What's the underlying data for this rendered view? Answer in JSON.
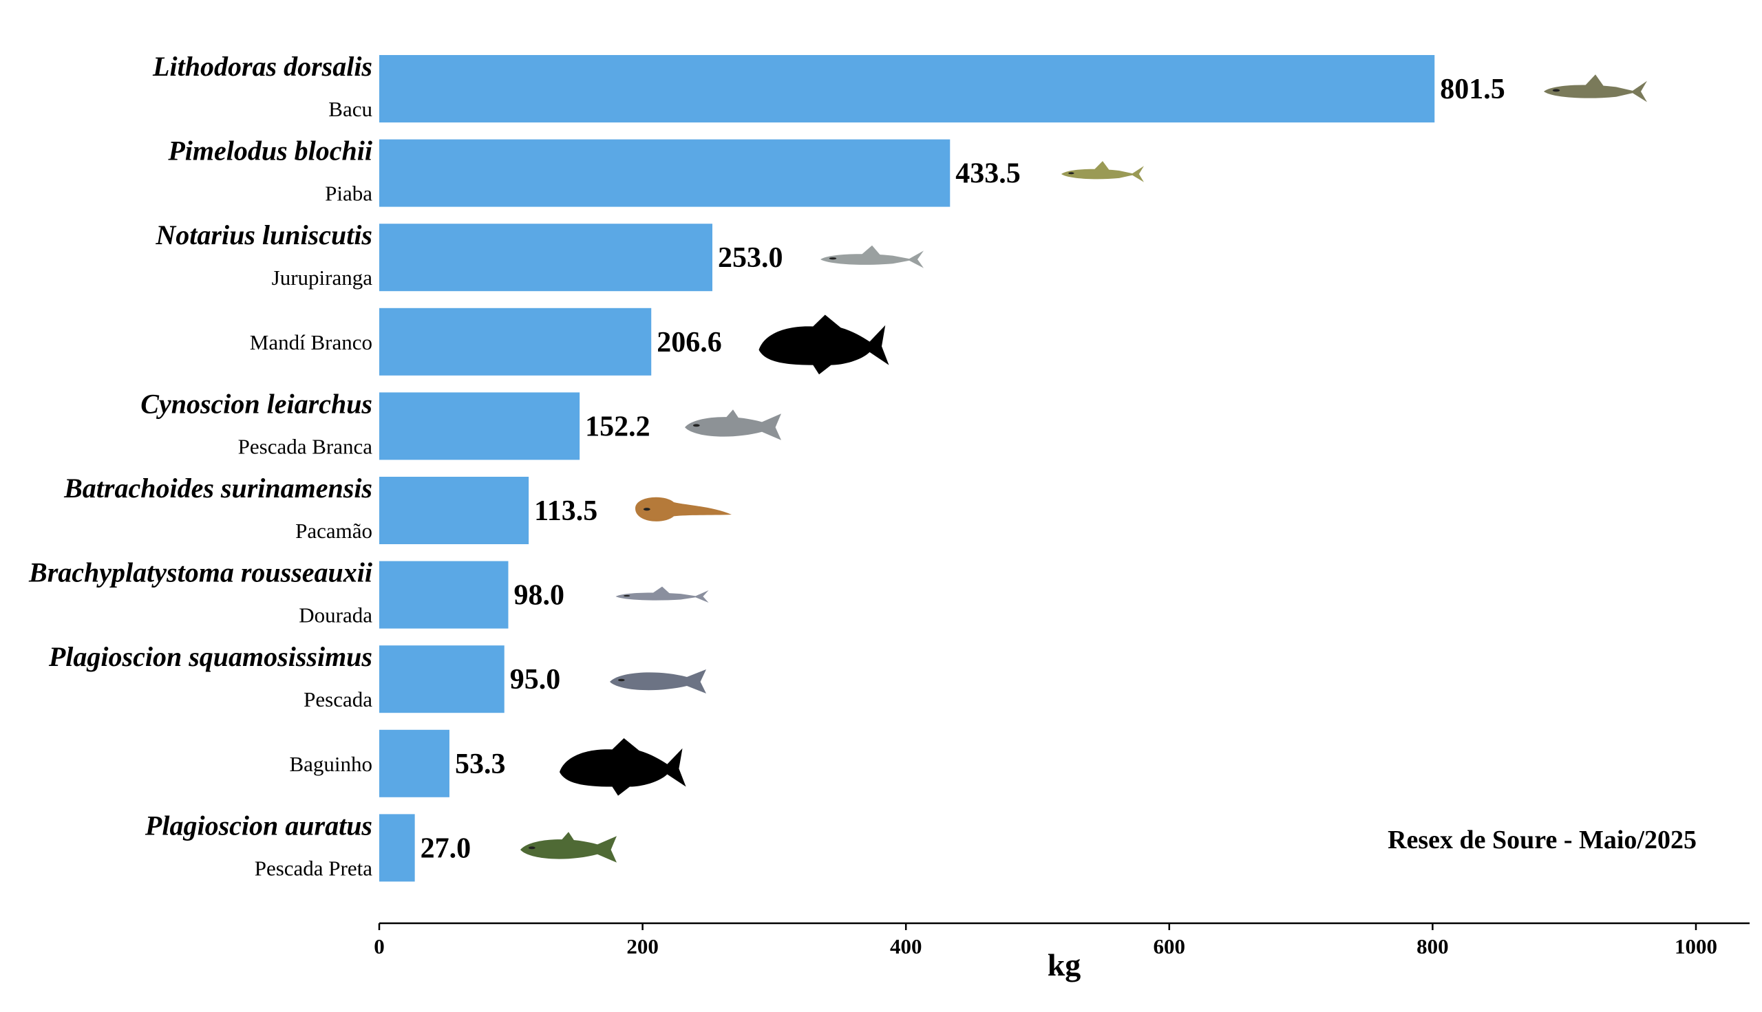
{
  "chart_data": {
    "type": "bar",
    "orientation": "horizontal",
    "title": "",
    "annotation": "Resex de Soure - Maio/2025",
    "xlabel": "kg",
    "ylabel": "",
    "xlim": [
      0,
      1040
    ],
    "xticks": [
      0,
      200,
      400,
      600,
      800,
      1000
    ],
    "grid": false,
    "bar_color": "#5BA8E5",
    "categories": [
      {
        "scientific": "Lithodoras dorsalis",
        "common": "Bacu",
        "value": 801.5,
        "label": "801.5",
        "icon": "bacu-fish-icon",
        "icon_color": "#7a7a5a"
      },
      {
        "scientific": "Pimelodus blochii",
        "common": "Piaba",
        "value": 433.5,
        "label": "433.5",
        "icon": "piaba-fish-icon",
        "icon_color": "#9a9a55"
      },
      {
        "scientific": "Notarius luniscutis",
        "common": "Jurupiranga",
        "value": 253.0,
        "label": "253.0",
        "icon": "jurupiranga-fish-icon",
        "icon_color": "#9aa0a0"
      },
      {
        "scientific": "",
        "common": "Mandí Branco",
        "value": 206.6,
        "label": "206.6",
        "icon": "fish-silhouette-icon",
        "icon_color": "#000000"
      },
      {
        "scientific": "Cynoscion leiarchus",
        "common": "Pescada Branca",
        "value": 152.2,
        "label": "152.2",
        "icon": "pescada-branca-fish-icon",
        "icon_color": "#8d9296"
      },
      {
        "scientific": "Batrachoides surinamensis",
        "common": "Pacamão",
        "value": 113.5,
        "label": "113.5",
        "icon": "pacamao-fish-icon",
        "icon_color": "#b57a3a"
      },
      {
        "scientific": "Brachyplatystoma rousseauxii",
        "common": "Dourada",
        "value": 98.0,
        "label": "98.0",
        "icon": "dourada-fish-icon",
        "icon_color": "#8a8f9e"
      },
      {
        "scientific": "Plagioscion squamosissimus",
        "common": "Pescada",
        "value": 95.0,
        "label": "95.0",
        "icon": "pescada-fish-icon",
        "icon_color": "#6c7384"
      },
      {
        "scientific": "",
        "common": "Baguinho",
        "value": 53.3,
        "label": "53.3",
        "icon": "fish-silhouette-icon",
        "icon_color": "#000000"
      },
      {
        "scientific": "Plagioscion auratus",
        "common": "Pescada Preta",
        "value": 27.0,
        "label": "27.0",
        "icon": "pescada-preta-fish-icon",
        "icon_color": "#4f6a35"
      }
    ]
  }
}
